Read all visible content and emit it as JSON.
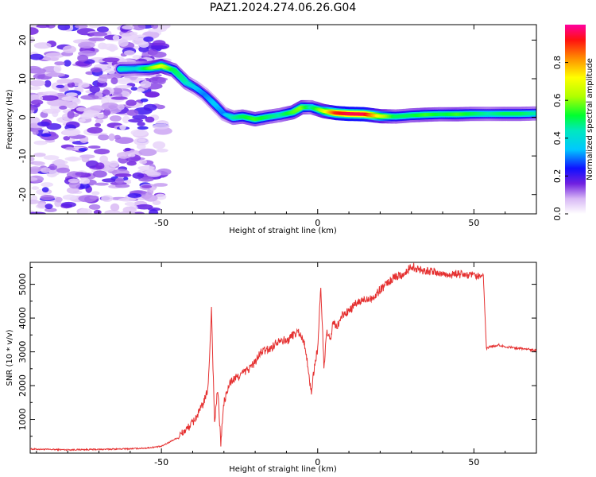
{
  "title": "PAZ1.2024.274.06.26.G04",
  "chart_data": [
    {
      "type": "heatmap",
      "xlabel": "Height of straight line (km)",
      "ylabel": "Frequency (Hz)",
      "xlim": [
        -92,
        70
      ],
      "ylim": [
        -25,
        24
      ],
      "x_ticks": [
        -50,
        0,
        50
      ],
      "y_ticks": [
        20,
        10,
        0,
        -10,
        -20
      ],
      "colorbar": {
        "label": "Normalized spectral amplitude",
        "range": [
          0,
          1
        ],
        "ticks": [
          0.0,
          0.2,
          0.4,
          0.6,
          0.8
        ]
      },
      "ridge": {
        "x": [
          -63,
          -58,
          -54,
          -50,
          -46,
          -42,
          -39,
          -36,
          -33,
          -30,
          -27,
          -24,
          -20,
          -16,
          -12,
          -8,
          -5,
          -2,
          2,
          6,
          10,
          15,
          20,
          25,
          30,
          35,
          40,
          45,
          50,
          55,
          60,
          65,
          70
        ],
        "y": [
          12.5,
          12.6,
          12.7,
          13.3,
          12.2,
          9.0,
          7.6,
          5.8,
          3.4,
          0.9,
          -0.1,
          0.2,
          -0.5,
          0.1,
          0.6,
          1.3,
          2.6,
          2.6,
          1.6,
          1.1,
          0.9,
          0.8,
          0.3,
          0.2,
          0.5,
          0.7,
          0.8,
          0.8,
          0.9,
          0.9,
          0.9,
          0.9,
          1.0
        ],
        "amplitude": [
          0.45,
          0.4,
          0.55,
          0.7,
          0.5,
          0.45,
          0.35,
          0.3,
          0.35,
          0.3,
          0.45,
          0.5,
          0.55,
          0.5,
          0.45,
          0.55,
          0.6,
          0.45,
          0.65,
          0.9,
          0.95,
          0.95,
          0.7,
          0.5,
          0.5,
          0.55,
          0.5,
          0.55,
          0.5,
          0.45,
          0.5,
          0.5,
          0.45
        ]
      },
      "noise_region_x": [
        -92,
        -49
      ]
    },
    {
      "type": "line",
      "xlabel": "Height of straight line (km)",
      "ylabel": "SNR (10 * v/v)",
      "xlim": [
        -92,
        70
      ],
      "ylim": [
        0,
        5650
      ],
      "x_ticks": [
        -50,
        0,
        50
      ],
      "y_ticks": [
        1000,
        2000,
        3000,
        4000,
        5000
      ],
      "color": "#e53030",
      "x": [
        -92,
        -80,
        -70,
        -60,
        -55,
        -50,
        -45,
        -42,
        -40,
        -38,
        -36,
        -35,
        -34,
        -33,
        -32,
        -31,
        -30,
        -28,
        -25,
        -22,
        -20,
        -18,
        -15,
        -12,
        -10,
        -8,
        -6,
        -4,
        -3,
        -2,
        -1,
        0,
        1,
        2,
        3,
        4,
        5,
        6,
        8,
        10,
        12,
        14,
        16,
        18,
        20,
        22,
        25,
        28,
        30,
        32,
        35,
        38,
        40,
        45,
        50,
        52,
        53,
        54,
        55,
        58,
        60,
        65,
        70
      ],
      "y": [
        120,
        100,
        110,
        130,
        150,
        200,
        450,
        700,
        900,
        1200,
        1600,
        2000,
        4300,
        900,
        1900,
        300,
        1500,
        2100,
        2300,
        2500,
        2700,
        3000,
        3100,
        3400,
        3300,
        3500,
        3600,
        3200,
        2400,
        1800,
        2600,
        3100,
        4900,
        2600,
        3600,
        3300,
        3900,
        3700,
        4100,
        4200,
        4400,
        4500,
        4600,
        4600,
        4850,
        5000,
        5250,
        5300,
        5550,
        5450,
        5400,
        5350,
        5300,
        5300,
        5250,
        5200,
        5300,
        3100,
        3150,
        3200,
        3150,
        3100,
        3050
      ]
    }
  ]
}
